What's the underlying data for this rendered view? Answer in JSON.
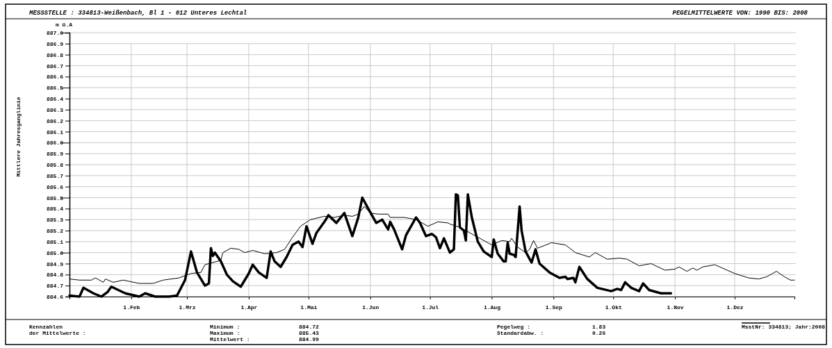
{
  "chart_data": {
    "type": "line",
    "title": "MESSSTELLE : 334813-Weißenbach, Bl 1 - 012 Unteres Lechtal",
    "subtitle": "PEGELMITTELWERTE VON: 1990 BIS: 2008",
    "ylabel": "Mittlere Jahresganglinie",
    "annotations": [
      "m ü.A",
      "Kennzahlen",
      "der Mittelwerte :",
      "Minimum :",
      "884.72",
      "Maximum :",
      "885.43",
      "Mittelwert :",
      "884.99",
      "Pegelweg :",
      "1.83",
      "Standardabw. :",
      "0.26",
      "MsstNr: 334813;  Jahr:2008"
    ],
    "xlim": [
      "--01-01",
      "--12-31"
    ],
    "xticks": [
      {
        "value": "--02-01",
        "label": "1.Feb"
      },
      {
        "value": "--03-01",
        "label": "1.Mrz"
      },
      {
        "value": "--04-01",
        "label": "1.Apr"
      },
      {
        "value": "--05-01",
        "label": "1.Mai"
      },
      {
        "value": "--06-01",
        "label": "1.Jun"
      },
      {
        "value": "--07-01",
        "label": "1.Jul"
      },
      {
        "value": "--08-01",
        "label": "1.Aug"
      },
      {
        "value": "--09-01",
        "label": "1.Sep"
      },
      {
        "value": "--10-01",
        "label": "1.Okt"
      },
      {
        "value": "--11-01",
        "label": "1.Nov"
      },
      {
        "value": "--12-01",
        "label": "1.Dez"
      }
    ],
    "ylim": [
      884.6,
      887.0
    ],
    "yticks": [
      {
        "value": 884.6,
        "label": "884.6"
      },
      {
        "value": 884.7,
        "label": "884.7"
      },
      {
        "value": 884.8,
        "label": "884.8"
      },
      {
        "value": 884.9,
        "label": "884.9"
      },
      {
        "value": 885.0,
        "label": "885.0"
      },
      {
        "value": 885.1,
        "label": "885.1"
      },
      {
        "value": 885.2,
        "label": "885.2"
      },
      {
        "value": 885.3,
        "label": "885.3"
      },
      {
        "value": 885.4,
        "label": "885.4"
      },
      {
        "value": 885.5,
        "label": "885.5"
      },
      {
        "value": 885.6,
        "label": "885.6"
      },
      {
        "value": 885.7,
        "label": "885.7"
      },
      {
        "value": 885.8,
        "label": "885.8"
      },
      {
        "value": 885.9,
        "label": "885.9"
      },
      {
        "value": 886.0,
        "label": "886.0"
      },
      {
        "value": 886.1,
        "label": "886.1"
      },
      {
        "value": 886.2,
        "label": "886.2"
      },
      {
        "value": 886.3,
        "label": "886.3"
      },
      {
        "value": 886.4,
        "label": "886.4"
      },
      {
        "value": 886.5,
        "label": "886.5"
      },
      {
        "value": 886.6,
        "label": "886.6"
      },
      {
        "value": 886.7,
        "label": "886.7"
      },
      {
        "value": 886.8,
        "label": "886.8"
      },
      {
        "value": 886.9,
        "label": "886.9"
      },
      {
        "value": 887.0,
        "label": "887.0"
      }
    ],
    "grid": true,
    "marker": "none",
    "line_style": "solid",
    "series": [
      {
        "color": "#000000",
        "x": [
          "--01-01",
          "--01-06",
          "--01-12",
          "--01-14",
          "--01-18",
          "--01-19",
          "--01-23",
          "--01-28",
          "--02-05",
          "--02-12",
          "--02-17",
          "--02-25",
          "--03-03",
          "--03-08",
          "--03-10",
          "--03-18",
          "--03-19",
          "--03-23",
          "--03-27",
          "--03-30",
          "--04-03",
          "--04-09",
          "--04-15",
          "--04-19",
          "--04-23",
          "--04-27",
          "--05-02",
          "--05-09",
          "--05-14",
          "--05-19",
          "--05-23",
          "--05-26",
          "--05-29",
          "--06-01",
          "--06-05",
          "--06-10",
          "--06-11",
          "--06-18",
          "--06-24",
          "--06-30",
          "--07-05",
          "--07-10",
          "--07-11",
          "--07-16",
          "--07-21",
          "--07-27",
          "--08-01",
          "--08-06",
          "--08-10",
          "--08-11",
          "--08-14",
          "--08-18",
          "--08-20",
          "--08-22",
          "--08-24",
          "--08-31",
          "--09-07",
          "--09-12",
          "--09-19",
          "--09-22",
          "--09-28",
          "--10-04",
          "--10-08",
          "--10-14",
          "--10-20",
          "--10-27",
          "--11-01",
          "--11-03",
          "--11-07",
          "--11-10",
          "--11-12",
          "--11-15",
          "--11-21",
          "--12-01",
          "--12-08",
          "--12-13",
          "--12-17",
          "--12-20",
          "--12-22",
          "--12-26",
          "--12-29",
          "--12-31"
        ],
        "values": [
          884.76,
          884.75,
          884.75,
          884.77,
          884.73,
          884.76,
          884.73,
          884.75,
          884.72,
          884.72,
          884.75,
          884.77,
          884.81,
          884.82,
          884.89,
          884.93,
          885.0,
          885.04,
          885.03,
          885.0,
          885.02,
          884.99,
          885.0,
          885.03,
          885.14,
          885.24,
          885.3,
          885.33,
          885.32,
          885.34,
          885.33,
          885.35,
          885.42,
          885.36,
          885.35,
          885.35,
          885.32,
          885.32,
          885.3,
          885.24,
          885.28,
          885.27,
          885.26,
          885.23,
          885.18,
          885.12,
          885.07,
          885.11,
          885.1,
          885.13,
          885.05,
          885.0,
          885.03,
          885.11,
          885.04,
          885.09,
          885.07,
          885.0,
          884.96,
          885.0,
          884.94,
          884.95,
          884.94,
          884.88,
          884.9,
          884.84,
          884.85,
          884.87,
          884.83,
          884.86,
          884.84,
          884.87,
          884.89,
          884.81,
          884.77,
          884.76,
          884.78,
          884.81,
          884.83,
          884.78,
          884.75,
          884.75
        ]
      },
      {
        "color": "#000000",
        "x": [
          "--01-01",
          "--01-06",
          "--01-08",
          "--01-13",
          "--01-17",
          "--01-20",
          "--01-22",
          "--01-29",
          "--02-05",
          "--02-08",
          "--02-13",
          "--02-20",
          "--02-24",
          "--02-28",
          "--03-03",
          "--03-06",
          "--03-10",
          "--03-12",
          "--03-13",
          "--03-14",
          "--03-15",
          "--03-18",
          "--03-21",
          "--03-24",
          "--03-28",
          "--04-01",
          "--04-03",
          "--04-06",
          "--04-10",
          "--04-12",
          "--04-14",
          "--04-17",
          "--04-20",
          "--04-23",
          "--04-26",
          "--04-28",
          "--04-30",
          "--05-03",
          "--05-05",
          "--05-09",
          "--05-11",
          "--05-15",
          "--05-19",
          "--05-23",
          "--05-26",
          "--05-28",
          "--05-31",
          "--06-04",
          "--06-07",
          "--06-10",
          "--06-11",
          "--06-13",
          "--06-17",
          "--06-19",
          "--06-24",
          "--06-26",
          "--06-29",
          "--07-02",
          "--07-04",
          "--07-06",
          "--07-08",
          "--07-11",
          "--07-13",
          "--07-14",
          "--07-15",
          "--07-16",
          "--07-18",
          "--07-19",
          "--07-20",
          "--07-22",
          "--07-25",
          "--07-28",
          "--08-01",
          "--08-02",
          "--08-04",
          "--08-07",
          "--08-08",
          "--08-09",
          "--08-10",
          "--08-12",
          "--08-13",
          "--08-15",
          "--08-16",
          "--08-18",
          "--08-21",
          "--08-23",
          "--08-25",
          "--08-30",
          "--09-04",
          "--09-07",
          "--09-08",
          "--09-11",
          "--09-12",
          "--09-14",
          "--09-18",
          "--09-23",
          "--09-30",
          "--10-03",
          "--10-05",
          "--10-07",
          "--10-10",
          "--10-14",
          "--10-16",
          "--10-19",
          "--10-25",
          "--10-30"
        ],
        "values": [
          884.61,
          884.6,
          884.68,
          884.63,
          884.6,
          884.64,
          884.69,
          884.63,
          884.6,
          884.63,
          884.6,
          884.6,
          884.61,
          884.75,
          885.01,
          884.82,
          884.7,
          884.72,
          885.04,
          884.97,
          885.0,
          884.92,
          884.8,
          884.74,
          884.69,
          884.81,
          884.89,
          884.82,
          884.77,
          885.01,
          884.92,
          884.87,
          884.96,
          885.07,
          885.1,
          885.05,
          885.24,
          885.08,
          885.18,
          885.28,
          885.34,
          885.27,
          885.36,
          885.15,
          885.32,
          885.5,
          885.4,
          885.27,
          885.3,
          885.21,
          885.28,
          885.21,
          885.03,
          885.16,
          885.32,
          885.27,
          885.15,
          885.17,
          885.14,
          885.04,
          885.13,
          885.0,
          885.03,
          885.53,
          885.52,
          885.23,
          885.2,
          885.11,
          885.53,
          885.32,
          885.1,
          885.01,
          884.96,
          885.12,
          884.99,
          884.92,
          884.92,
          885.09,
          884.99,
          884.98,
          884.96,
          885.42,
          885.2,
          885.01,
          884.91,
          885.03,
          884.9,
          884.82,
          884.77,
          884.78,
          884.76,
          884.77,
          884.73,
          884.87,
          884.76,
          884.68,
          884.65,
          884.67,
          884.66,
          884.73,
          884.68,
          884.65,
          884.72,
          884.66,
          884.63,
          884.63
        ]
      }
    ]
  }
}
